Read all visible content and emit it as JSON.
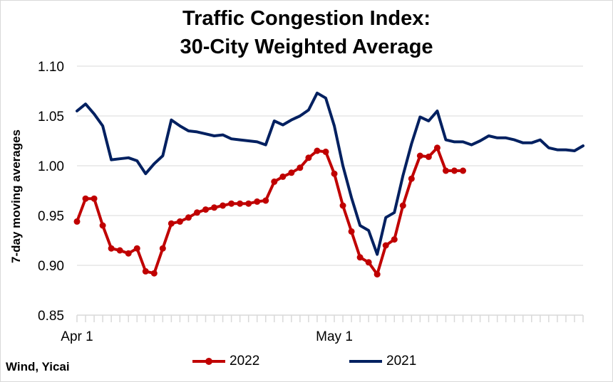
{
  "source": "Wind, Yicai",
  "chart_data": {
    "type": "line",
    "title_line1": "Traffic Congestion Index:",
    "title_line2": "30-City Weighted Average",
    "xlabel": "",
    "ylabel": "7-day moving averages",
    "ylim": [
      0.85,
      1.1
    ],
    "yticks": [
      "1.10",
      "1.05",
      "1.00",
      "0.95",
      "0.90",
      "0.85"
    ],
    "xticks": [
      "Apr 1",
      "May 1"
    ],
    "x_start": "Apr 1",
    "grid": true,
    "legend_position": "bottom",
    "series": [
      {
        "name": "2022",
        "color": "#c00000",
        "markers": true,
        "values": [
          0.944,
          0.967,
          0.967,
          0.94,
          0.917,
          0.915,
          0.912,
          0.917,
          0.894,
          0.892,
          0.917,
          0.942,
          0.944,
          0.948,
          0.953,
          0.956,
          0.958,
          0.96,
          0.962,
          0.962,
          0.962,
          0.964,
          0.965,
          0.984,
          0.989,
          0.993,
          0.998,
          1.008,
          1.015,
          1.014,
          0.992,
          0.96,
          0.934,
          0.908,
          0.903,
          0.891,
          0.92,
          0.926,
          0.96,
          0.987,
          1.01,
          1.009,
          1.018,
          0.995,
          0.995,
          0.995
        ]
      },
      {
        "name": "2021",
        "color": "#002060",
        "markers": false,
        "values": [
          1.055,
          1.062,
          1.052,
          1.04,
          1.006,
          1.007,
          1.008,
          1.005,
          0.992,
          1.002,
          1.01,
          1.046,
          1.04,
          1.035,
          1.034,
          1.032,
          1.03,
          1.031,
          1.027,
          1.026,
          1.025,
          1.024,
          1.021,
          1.045,
          1.041,
          1.046,
          1.05,
          1.056,
          1.073,
          1.068,
          1.04,
          1.0,
          0.968,
          0.94,
          0.935,
          0.911,
          0.948,
          0.953,
          0.99,
          1.022,
          1.049,
          1.045,
          1.055,
          1.026,
          1.024,
          1.024,
          1.021,
          1.025,
          1.03,
          1.028,
          1.028,
          1.026,
          1.023,
          1.023,
          1.026,
          1.018,
          1.016,
          1.016,
          1.015,
          1.02
        ]
      }
    ]
  }
}
